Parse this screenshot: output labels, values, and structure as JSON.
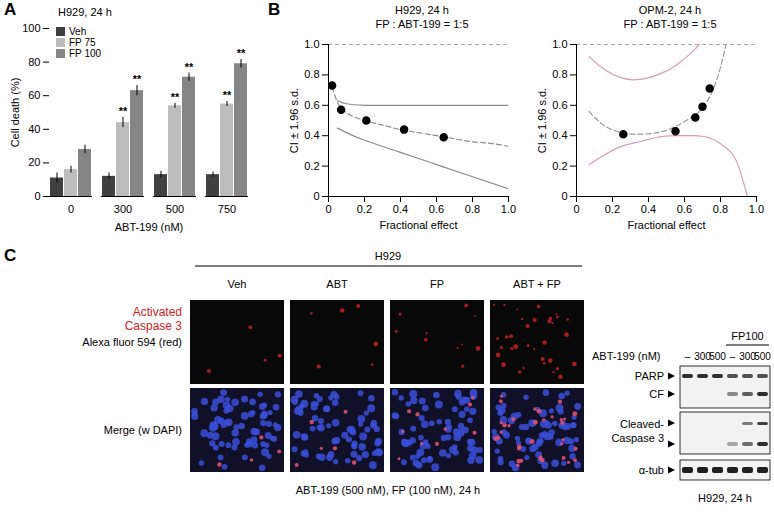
{
  "panel_labels": [
    "A",
    "B",
    "C"
  ],
  "chart_data": [
    {
      "type": "bar",
      "title": "H929, 24 h",
      "x_label": "ABT-199 (nM)",
      "y_label": "Cell death (%)",
      "categories": [
        0,
        300,
        500,
        750
      ],
      "series": [
        {
          "name": "Veh",
          "color": "#404040",
          "values": [
            11,
            12,
            13,
            13
          ],
          "errors": [
            3,
            2,
            2,
            1.5
          ]
        },
        {
          "name": "FP 75",
          "color": "#bdbdbd",
          "values": [
            16,
            44,
            54,
            55
          ],
          "errors": [
            2,
            3,
            1.5,
            1.5
          ],
          "annotations": [
            null,
            "**",
            "**",
            "**"
          ]
        },
        {
          "name": "FP 100",
          "color": "#858585",
          "values": [
            28,
            63,
            71,
            79
          ],
          "errors": [
            2.5,
            3,
            2.5,
            2.5
          ],
          "annotations": [
            null,
            "**",
            "**",
            "**"
          ]
        }
      ],
      "ylim": [
        0,
        100
      ],
      "yticks": [
        0,
        20,
        40,
        60,
        80,
        100
      ],
      "legend": "top-left"
    },
    {
      "type": "scatter",
      "title": "H929, 24 h",
      "subtitle": "FP : ABT-199 = 1:5",
      "x_label": "Fractional effect",
      "y_label": "CI ± 1.96 s.d.",
      "x": [
        0.02,
        0.07,
        0.21,
        0.42,
        0.64
      ],
      "values": [
        0.73,
        0.57,
        0.5,
        0.44,
        0.39
      ],
      "color": "#000000",
      "marker": "circle",
      "curves": [
        {
          "x": [
            0.05,
            0.1,
            0.2,
            0.4,
            0.6,
            0.8,
            1.0
          ],
          "values": [
            0.63,
            0.61,
            0.6,
            0.6,
            0.6,
            0.6,
            0.6
          ],
          "color": "#8c8c8c",
          "line_style": "solid"
        },
        {
          "x": [
            0.02,
            0.05,
            0.1,
            0.2,
            0.3,
            0.4,
            0.5,
            0.6,
            0.7,
            0.8,
            0.9,
            1.0
          ],
          "values": [
            0.72,
            0.62,
            0.55,
            0.5,
            0.47,
            0.44,
            0.42,
            0.4,
            0.38,
            0.36,
            0.35,
            0.33
          ],
          "color": "#8c8c8c",
          "line_style": "dashed"
        },
        {
          "x": [
            0.05,
            0.1,
            0.2,
            0.4,
            0.6,
            0.8,
            1.0
          ],
          "values": [
            0.45,
            0.42,
            0.37,
            0.29,
            0.21,
            0.13,
            0.05
          ],
          "color": "#8c8c8c",
          "line_style": "solid"
        }
      ],
      "reference_line": {
        "value": 1,
        "color": "#aaaaaa",
        "line_style": "dashed"
      },
      "xlim": [
        0,
        1
      ],
      "xticks": [
        0,
        0.2,
        0.4,
        0.6,
        0.8,
        {
          "value": 1,
          "label": "1.0"
        }
      ],
      "ylim": [
        0,
        1
      ],
      "yticks": [
        0,
        0.2,
        0.4,
        0.6,
        0.8,
        {
          "value": 1,
          "label": "1.0"
        }
      ]
    },
    {
      "type": "scatter",
      "title": "OPM-2, 24 h",
      "subtitle": "FP : ABT-199 = 1:5",
      "x_label": "Fractional effect",
      "y_label": "CI ± 1.96 s.d.",
      "x": [
        0.26,
        0.55,
        0.66,
        0.7,
        0.74
      ],
      "values": [
        0.41,
        0.43,
        0.52,
        0.59,
        0.71
      ],
      "color": "#000000",
      "marker": "circle",
      "curves": [
        {
          "x": [
            0.07,
            0.15,
            0.25,
            0.35,
            0.45,
            0.55,
            0.65,
            0.7,
            0.8
          ],
          "values": [
            0.92,
            0.84,
            0.78,
            0.77,
            0.8,
            0.86,
            0.96,
            1.03,
            1.2
          ],
          "color": "#d8a0a8",
          "line_style": "solid"
        },
        {
          "x": [
            0.07,
            0.15,
            0.25,
            0.35,
            0.45,
            0.55,
            0.65,
            0.7,
            0.75,
            0.8,
            0.85
          ],
          "values": [
            0.56,
            0.47,
            0.42,
            0.41,
            0.42,
            0.46,
            0.53,
            0.58,
            0.68,
            0.85,
            1.1
          ],
          "color": "#9a9a9a",
          "line_style": "dashed"
        },
        {
          "x": [
            0.07,
            0.15,
            0.25,
            0.35,
            0.45,
            0.55,
            0.65,
            0.75,
            0.85,
            0.9,
            0.95
          ],
          "values": [
            0.21,
            0.27,
            0.33,
            0.36,
            0.39,
            0.4,
            0.4,
            0.38,
            0.3,
            0.2,
            0.0
          ],
          "color": "#d8a0a8",
          "line_style": "solid"
        }
      ],
      "reference_line": {
        "value": 1,
        "color": "#aaaaaa",
        "line_style": "dashed"
      },
      "xlim": [
        0,
        1
      ],
      "xticks": [
        0,
        0.2,
        0.4,
        0.6,
        0.8,
        {
          "value": 1,
          "label": "1.0"
        }
      ],
      "ylim": [
        0,
        1
      ],
      "yticks": [
        0,
        0.2,
        0.4,
        0.6,
        0.8,
        {
          "value": 1,
          "label": "1.0"
        }
      ]
    }
  ],
  "panel_c": {
    "group_label": "H929",
    "columns": [
      "Veh",
      "ABT",
      "FP",
      "ABT + FP"
    ],
    "row_labels": [
      {
        "text": "Activated Caspase 3",
        "color": "#e02020"
      },
      {
        "text": "Alexa fluor 594 (red)",
        "color": "#000000"
      },
      {
        "text": "Merge (w DAPI)",
        "color": "#000000"
      }
    ],
    "caption": "ABT-199 (500 nM), FP (100 nM), 24 h",
    "blot": {
      "treatment_label": "FP100",
      "dose_label": "ABT-199 (nM)",
      "lanes": [
        "–",
        "300",
        "500",
        "–",
        "300",
        "500"
      ],
      "fp_lanes": [
        false,
        false,
        false,
        true,
        true,
        true
      ],
      "bands": [
        "PARP",
        "CF",
        "Cleaved-Caspase 3",
        "α-tub"
      ],
      "footer": "H929, 24 h"
    }
  }
}
